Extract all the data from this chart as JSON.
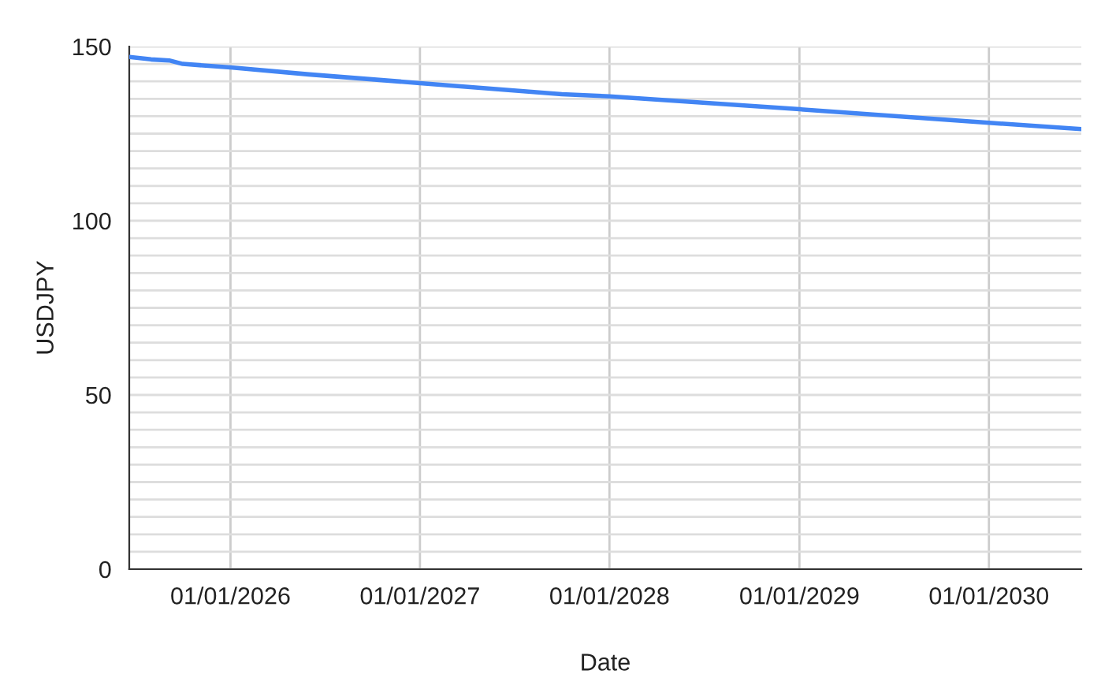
{
  "chart_data": {
    "type": "line",
    "xlabel": "Date",
    "ylabel": "USDJPY",
    "x": [
      "2025-06-20",
      "2025-08-01",
      "2025-09-05",
      "2025-10-01",
      "2026-01-01",
      "2026-06-01",
      "2027-01-01",
      "2027-10-01",
      "2028-01-01",
      "2029-01-01",
      "2030-01-01",
      "2030-06-28"
    ],
    "series": [
      {
        "color": "#4285f4",
        "values": [
          147.0,
          146.3,
          146.0,
          145.0,
          144.0,
          142.0,
          139.5,
          136.3,
          135.7,
          132.0,
          128.1,
          126.3
        ]
      }
    ],
    "xlim": [
      "2025-06-20",
      "2030-06-28"
    ],
    "xticks": [
      {
        "value": "2026-01-01",
        "label": "01/01/2026"
      },
      {
        "value": "2027-01-01",
        "label": "01/01/2027"
      },
      {
        "value": "2028-01-01",
        "label": "01/01/2028"
      },
      {
        "value": "2029-01-01",
        "label": "01/01/2029"
      },
      {
        "value": "2030-01-01",
        "label": "01/01/2030"
      }
    ],
    "ylim": [
      0,
      150
    ],
    "yticks": [
      0,
      {
        "value": 5,
        "label": null
      },
      {
        "value": 10,
        "label": null
      },
      {
        "value": 15,
        "label": null
      },
      {
        "value": 20,
        "label": null
      },
      {
        "value": 25,
        "label": null
      },
      {
        "value": 30,
        "label": null
      },
      {
        "value": 35,
        "label": null
      },
      {
        "value": 40,
        "label": null
      },
      {
        "value": 45,
        "label": null
      },
      50,
      {
        "value": 55,
        "label": null
      },
      {
        "value": 60,
        "label": null
      },
      {
        "value": 65,
        "label": null
      },
      {
        "value": 70,
        "label": null
      },
      {
        "value": 75,
        "label": null
      },
      {
        "value": 80,
        "label": null
      },
      {
        "value": 85,
        "label": null
      },
      {
        "value": 90,
        "label": null
      },
      {
        "value": 95,
        "label": null
      },
      100,
      {
        "value": 105,
        "label": null
      },
      {
        "value": 110,
        "label": null
      },
      {
        "value": 115,
        "label": null
      },
      {
        "value": 120,
        "label": null
      },
      {
        "value": 125,
        "label": null
      },
      {
        "value": 130,
        "label": null
      },
      {
        "value": 135,
        "label": null
      },
      {
        "value": 140,
        "label": null
      },
      {
        "value": 145,
        "label": null
      },
      150
    ],
    "grid": true,
    "marker": "none",
    "line_style": "solid"
  }
}
